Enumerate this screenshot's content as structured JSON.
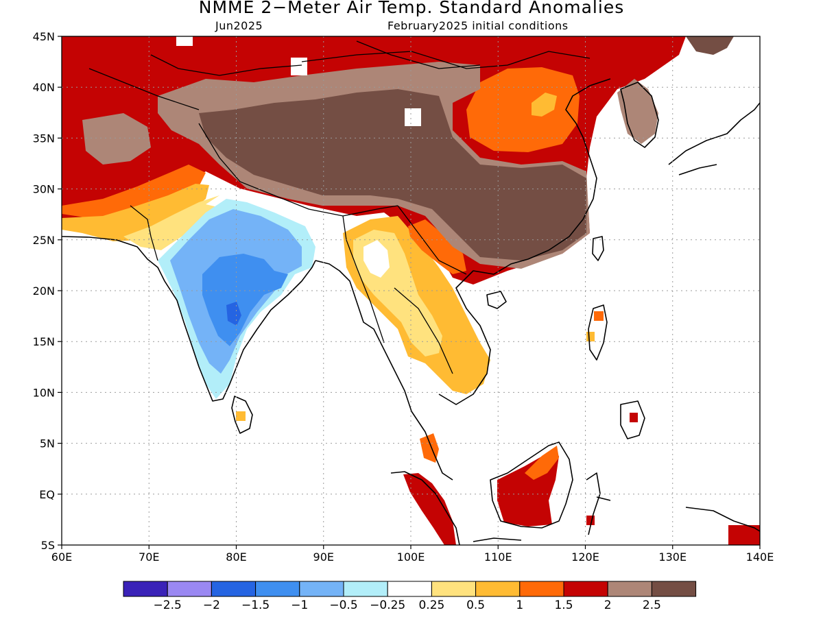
{
  "title": "NMME 2−Meter Air Temp. Standard Anomalies",
  "subtitle_left": "Jun2025",
  "subtitle_right": "February2025 initial conditions",
  "lat_ticks": [
    "45N",
    "40N",
    "35N",
    "30N",
    "25N",
    "20N",
    "15N",
    "10N",
    "5N",
    "EQ",
    "5S"
  ],
  "lon_ticks": [
    "60E",
    "70E",
    "80E",
    "90E",
    "100E",
    "110E",
    "120E",
    "130E",
    "140E"
  ],
  "colorbar": {
    "colors": [
      "#3a22b8",
      "#9a88f2",
      "#2564e2",
      "#3f8ff0",
      "#74b3f7",
      "#b2eef9",
      "#ffffff",
      "#ffe27e",
      "#ffbb33",
      "#ff6a08",
      "#c40303",
      "#ad8677",
      "#744e44"
    ],
    "labels": [
      "−2.5",
      "−2",
      "−1.5",
      "−1",
      "−0.5",
      "−0.25",
      "0.25",
      "0.5",
      "1",
      "1.5",
      "2",
      "2.5"
    ]
  },
  "map_regions": [
    {
      "name": "southern-asia-warm-band",
      "level": "2"
    },
    {
      "name": "tibetan-plateau",
      "level": "above 2.5"
    },
    {
      "name": "northern-china",
      "level": "1.5"
    },
    {
      "name": "indian-subcontinent",
      "level": "-1.5 to -0.25"
    },
    {
      "name": "indochina",
      "level": "0.25 to 1"
    },
    {
      "name": "borneo",
      "level": "2"
    },
    {
      "name": "sumatra",
      "level": "2"
    }
  ]
}
